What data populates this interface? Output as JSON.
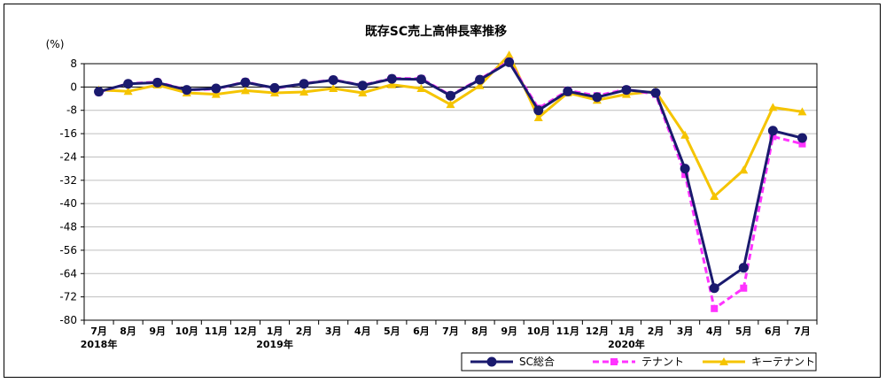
{
  "chart_data": {
    "type": "line",
    "title": "既存SC売上高伸長率推移",
    "ylabel": "(%)",
    "xlabel": "",
    "ylim": [
      -80,
      8
    ],
    "yticks": [
      8,
      0,
      -8,
      -16,
      -24,
      -32,
      -40,
      -48,
      -56,
      -64,
      -72,
      -80
    ],
    "grid": true,
    "legend": "bottom-right",
    "categories": [
      "7月",
      "8月",
      "9月",
      "10月",
      "11月",
      "12月",
      "1月",
      "2月",
      "3月",
      "4月",
      "5月",
      "6月",
      "7月",
      "8月",
      "9月",
      "10月",
      "11月",
      "12月",
      "1月",
      "2月",
      "3月",
      "4月",
      "5月",
      "6月",
      "7月"
    ],
    "year_labels": [
      {
        "index": 0,
        "label": "2018年"
      },
      {
        "index": 6,
        "label": "2019年"
      },
      {
        "index": 18,
        "label": "2020年"
      }
    ],
    "series": [
      {
        "name": "SC総合",
        "color": "#1a1a6e",
        "marker": "circle",
        "dash": "solid",
        "values": [
          -1.6,
          1.1,
          1.5,
          -1.0,
          -0.5,
          1.6,
          -0.3,
          1.1,
          2.4,
          0.5,
          2.8,
          2.6,
          -3.0,
          2.5,
          8.5,
          -8.0,
          -1.5,
          -3.5,
          -1.0,
          -2.0,
          -28.0,
          -69.0,
          -62.0,
          -15.0,
          -17.5
        ]
      },
      {
        "name": "テナント",
        "color": "#ff33ff",
        "marker": "square",
        "dash": "dashed",
        "values": [
          -1.8,
          1.2,
          1.7,
          -1.0,
          -0.7,
          1.8,
          -0.5,
          1.2,
          2.5,
          0.6,
          3.0,
          2.9,
          -2.8,
          2.7,
          8.8,
          -7.3,
          -1.2,
          -3.0,
          -0.8,
          -2.5,
          -30.0,
          -76.0,
          -69.0,
          -17.0,
          -19.5
        ]
      },
      {
        "name": "キーテナント",
        "color": "#f5c400",
        "marker": "triangle",
        "dash": "solid",
        "values": [
          -1.0,
          -1.5,
          0.7,
          -2.0,
          -2.5,
          -1.2,
          -2.0,
          -1.7,
          -0.5,
          -2.0,
          0.8,
          -0.5,
          -6.0,
          0.5,
          11.0,
          -10.5,
          -2.0,
          -4.5,
          -2.5,
          -1.5,
          -16.5,
          -37.5,
          -28.5,
          -7.0,
          -8.5
        ]
      }
    ]
  }
}
